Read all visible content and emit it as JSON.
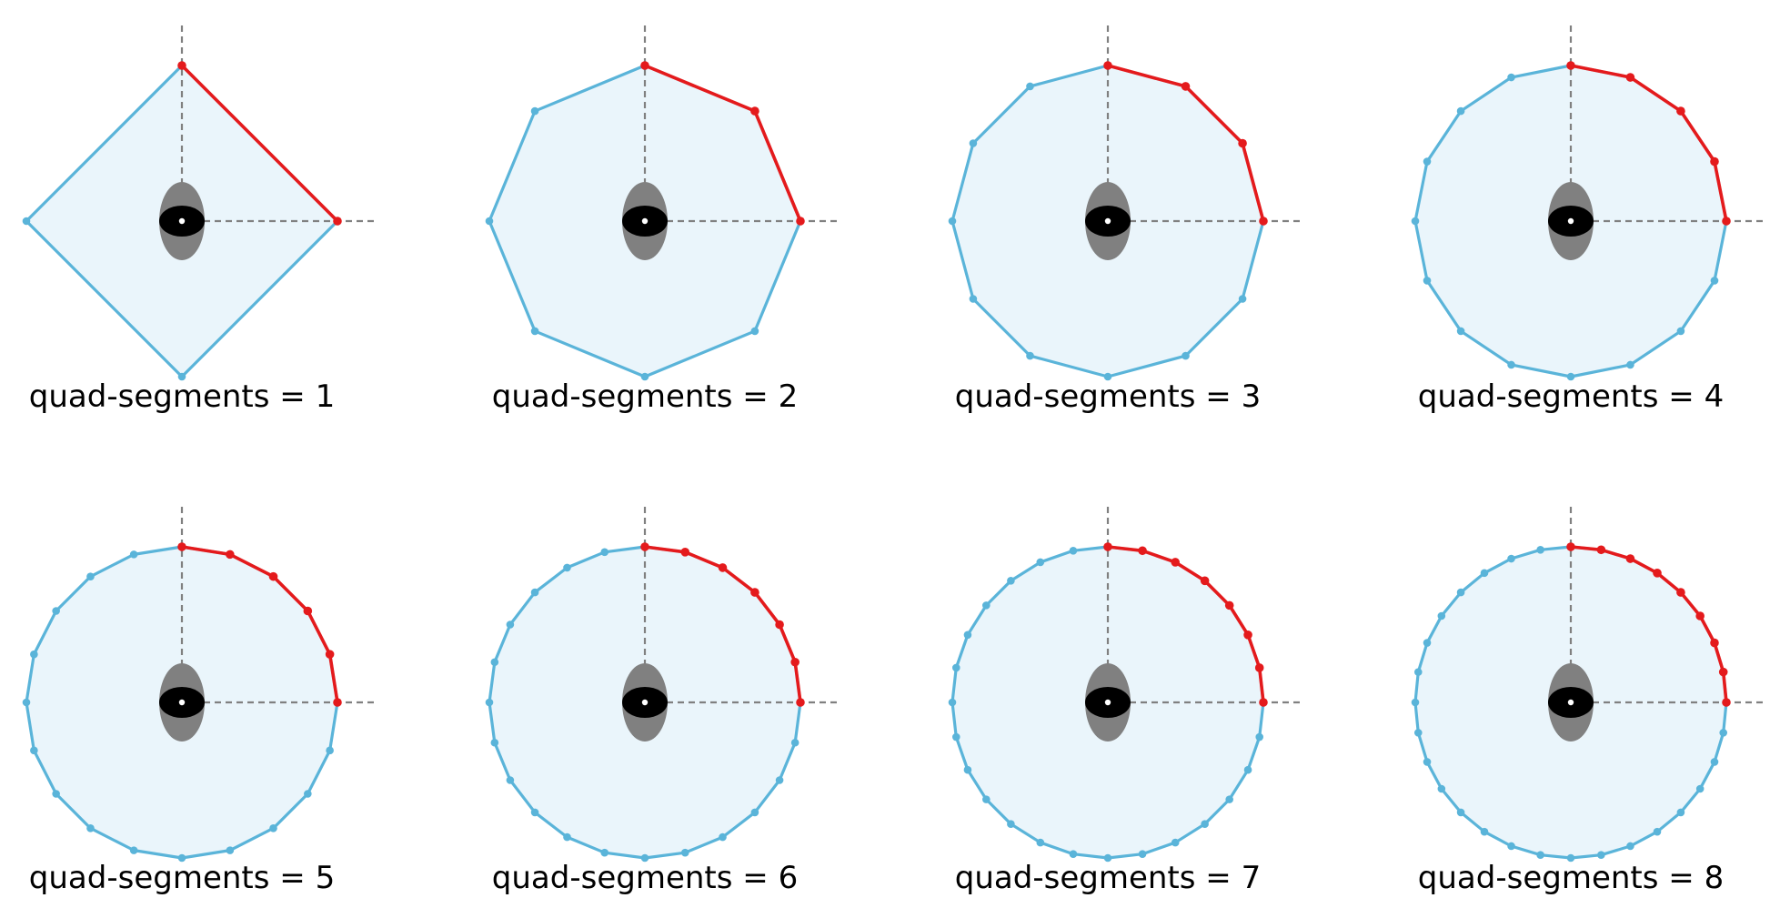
{
  "figure": {
    "panels": [
      {
        "label": "quad-segments = 1",
        "quad_segments": 1
      },
      {
        "label": "quad-segments = 2",
        "quad_segments": 2
      },
      {
        "label": "quad-segments = 3",
        "quad_segments": 3
      },
      {
        "label": "quad-segments = 4",
        "quad_segments": 4
      },
      {
        "label": "quad-segments = 5",
        "quad_segments": 5
      },
      {
        "label": "quad-segments = 6",
        "quad_segments": 6
      },
      {
        "label": "quad-segments = 7",
        "quad_segments": 7
      },
      {
        "label": "quad-segments = 8",
        "quad_segments": 8
      }
    ]
  },
  "colors": {
    "polygon_stroke": "#5ab4d9",
    "polygon_fill": "#eaf5fb",
    "highlight_quadrant": "#e41a1c",
    "axis_dashed": "#808080",
    "center_outer": "#808080",
    "center_inner": "#000000",
    "center_dot": "#ffffff"
  }
}
